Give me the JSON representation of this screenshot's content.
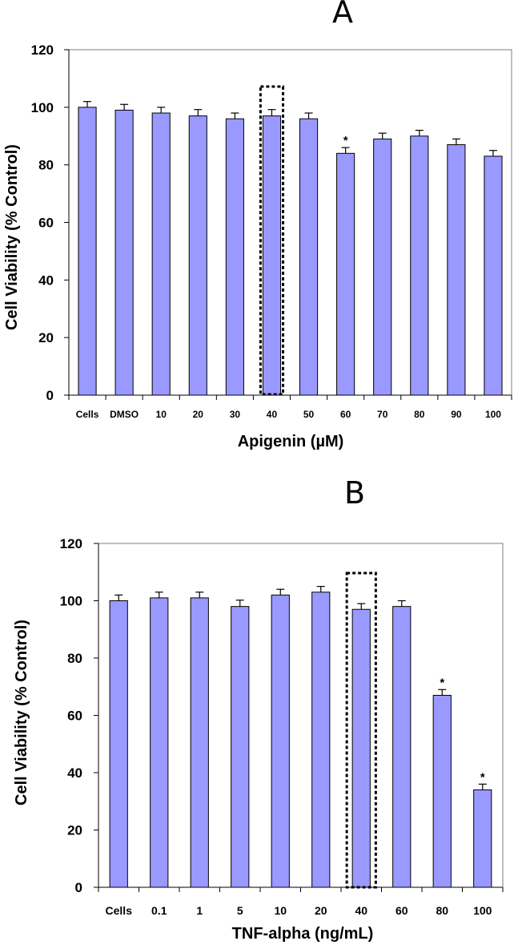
{
  "chart_data": [
    {
      "type": "bar",
      "panel_label": "A",
      "xlabel": "Apigenin (µM)",
      "ylabel": "Cell Viability (% Control)",
      "ylim": [
        0,
        120
      ],
      "yticks": [
        0,
        20,
        40,
        60,
        80,
        100,
        120
      ],
      "categories": [
        "Cells",
        "DMSO",
        "10",
        "20",
        "30",
        "40",
        "50",
        "60",
        "70",
        "80",
        "90",
        "100"
      ],
      "values": [
        100,
        99,
        98,
        97,
        96,
        97,
        96,
        84,
        89,
        90,
        87,
        83
      ],
      "errors": [
        2,
        2,
        2,
        2.2,
        2,
        2.2,
        2,
        2,
        2,
        2,
        2,
        2
      ],
      "significant": [
        false,
        false,
        false,
        false,
        false,
        false,
        false,
        true,
        false,
        false,
        false,
        false
      ],
      "significance_marker": "*",
      "highlighted_category": "40",
      "bar_color": "#9999ff",
      "grid": false
    },
    {
      "type": "bar",
      "panel_label": "B",
      "xlabel": "TNF-alpha (ng/mL)",
      "ylabel": "Cell Viability (% Control)",
      "ylim": [
        0,
        120
      ],
      "yticks": [
        0,
        20,
        40,
        60,
        80,
        100,
        120
      ],
      "categories": [
        "Cells",
        "0.1",
        "1",
        "5",
        "10",
        "20",
        "40",
        "60",
        "80",
        "100"
      ],
      "values": [
        100,
        101,
        101,
        98,
        102,
        103,
        97,
        98,
        67,
        34
      ],
      "errors": [
        2,
        2,
        2,
        2.2,
        2,
        2,
        2,
        2,
        2,
        2
      ],
      "significant": [
        false,
        false,
        false,
        false,
        false,
        false,
        false,
        false,
        true,
        true
      ],
      "significance_marker": "*",
      "highlighted_category": "40",
      "bar_color": "#9999ff",
      "grid": false
    }
  ]
}
